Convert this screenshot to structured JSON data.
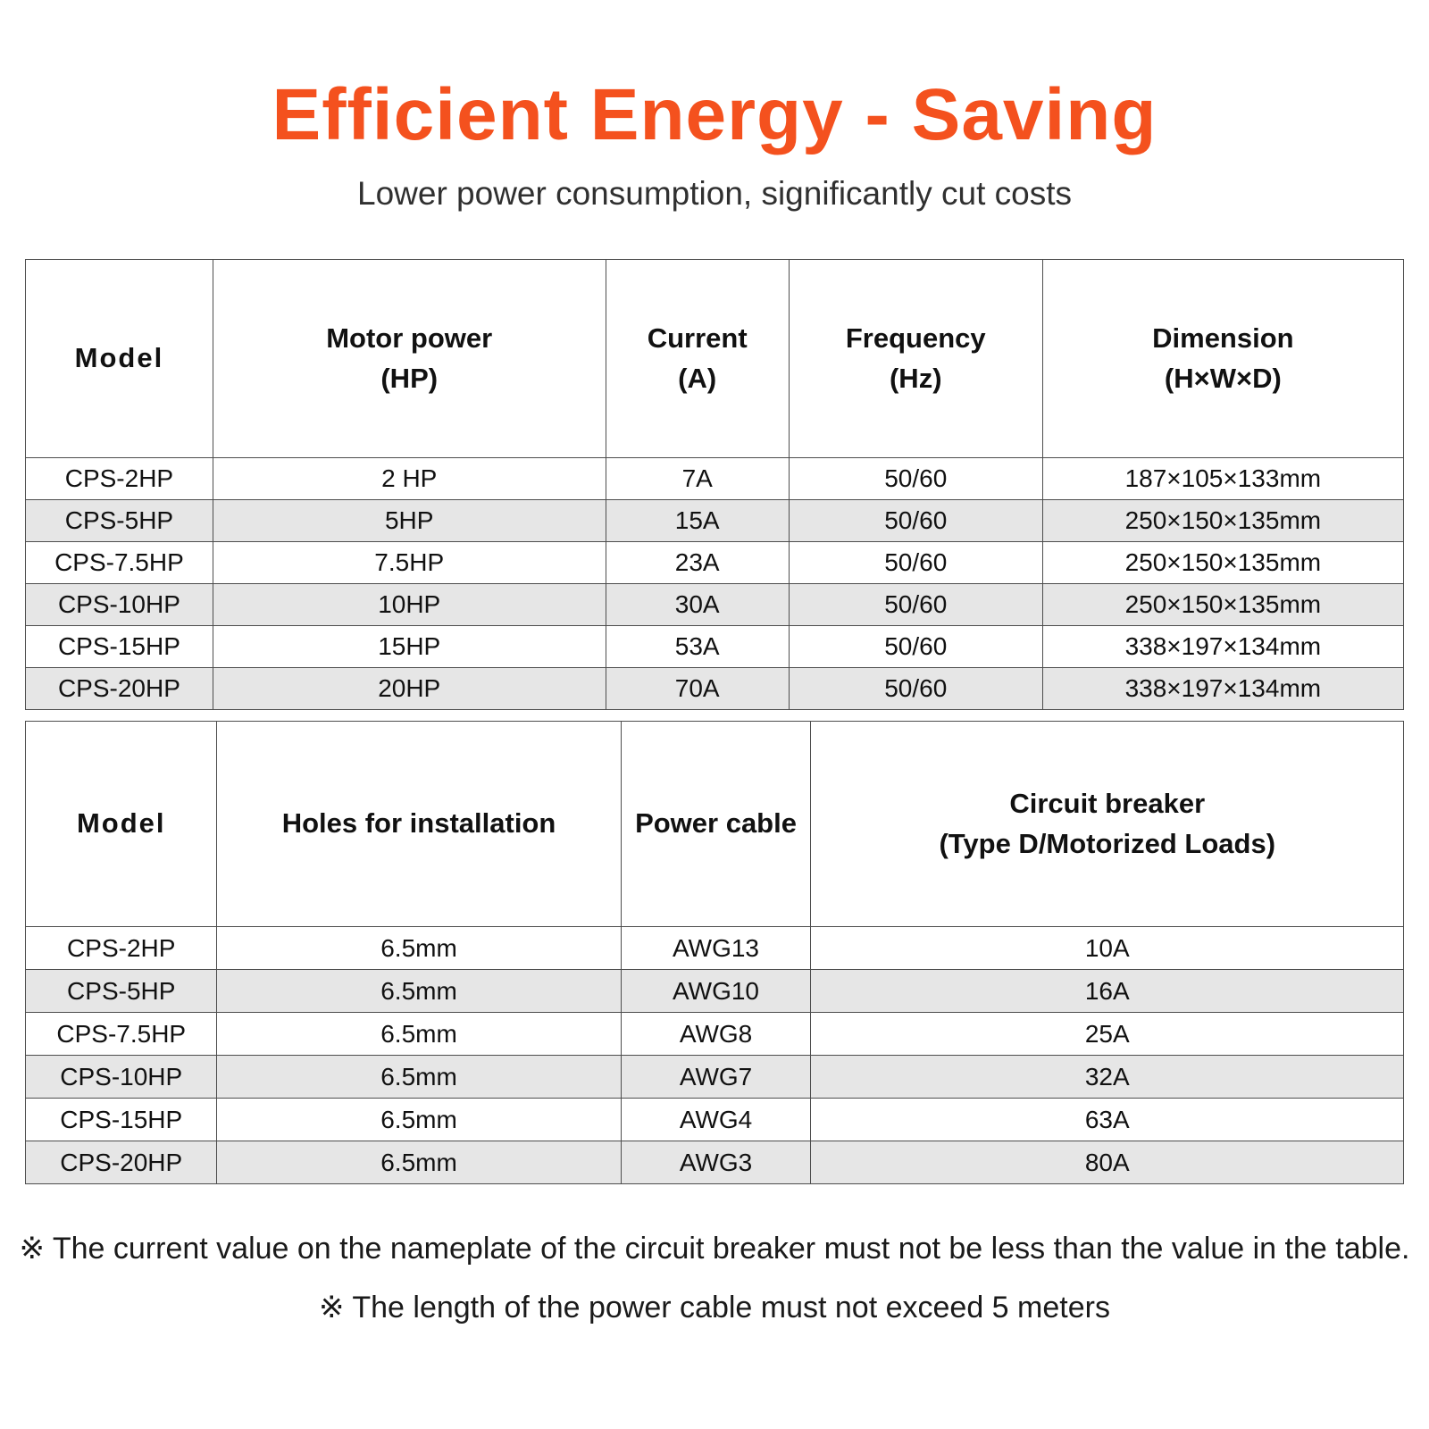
{
  "page": {
    "title": "Efficient Energy - Saving",
    "subtitle": "Lower power consumption, significantly cut costs",
    "accent_color": "#f4511e",
    "row_alt_color": "#e6e6e6"
  },
  "table1": {
    "headers": [
      [
        "Model"
      ],
      [
        "Motor power",
        "(HP)"
      ],
      [
        "Current",
        "(A)"
      ],
      [
        "Frequency",
        "(Hz)"
      ],
      [
        "Dimension",
        "(H×W×D)"
      ]
    ],
    "rows": [
      [
        "CPS-2HP",
        "2 HP",
        "7A",
        "50/60",
        "187×105×133mm"
      ],
      [
        "CPS-5HP",
        "5HP",
        "15A",
        "50/60",
        "250×150×135mm"
      ],
      [
        "CPS-7.5HP",
        "7.5HP",
        "23A",
        "50/60",
        "250×150×135mm"
      ],
      [
        "CPS-10HP",
        "10HP",
        "30A",
        "50/60",
        "250×150×135mm"
      ],
      [
        "CPS-15HP",
        "15HP",
        "53A",
        "50/60",
        "338×197×134mm"
      ],
      [
        "CPS-20HP",
        "20HP",
        "70A",
        "50/60",
        "338×197×134mm"
      ]
    ]
  },
  "table2": {
    "headers": [
      [
        "Model"
      ],
      [
        "Holes for installation"
      ],
      [
        "Power cable"
      ],
      [
        "Circuit breaker",
        "(Type D/Motorized Loads)"
      ]
    ],
    "rows": [
      [
        "CPS-2HP",
        "6.5mm",
        "AWG13",
        "10A"
      ],
      [
        "CPS-5HP",
        "6.5mm",
        "AWG10",
        "16A"
      ],
      [
        "CPS-7.5HP",
        "6.5mm",
        "AWG8",
        "25A"
      ],
      [
        "CPS-10HP",
        "6.5mm",
        "AWG7",
        "32A"
      ],
      [
        "CPS-15HP",
        "6.5mm",
        "AWG4",
        "63A"
      ],
      [
        "CPS-20HP",
        "6.5mm",
        "AWG3",
        "80A"
      ]
    ]
  },
  "notes": [
    "※ The current value on the nameplate of the circuit breaker must not be less than the value in the table.",
    "※ The length of the power cable must not exceed 5 meters"
  ]
}
